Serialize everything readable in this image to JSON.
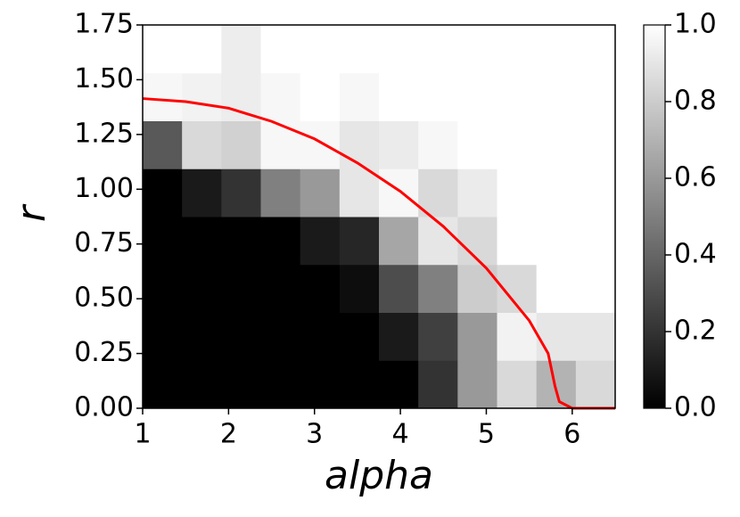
{
  "chart_data": {
    "type": "heatmap",
    "xlabel": "alpha",
    "ylabel": "r",
    "xlim": [
      1,
      6.5
    ],
    "ylim": [
      0,
      1.75
    ],
    "xticks": [
      1,
      2,
      3,
      4,
      5,
      6
    ],
    "yticks": [
      {
        "value": 0,
        "label": "0.00"
      },
      {
        "value": 0.25,
        "label": "0.25"
      },
      {
        "value": 0.5,
        "label": "0.50"
      },
      {
        "value": 0.75,
        "label": "0.75"
      },
      {
        "value": 1,
        "label": "1.00"
      },
      {
        "value": 1.25,
        "label": "1.25"
      },
      {
        "value": 1.5,
        "label": "1.50"
      },
      1.75
    ],
    "values": [
      [
        0,
        0,
        0,
        0,
        0,
        0,
        0,
        0.2,
        0.6,
        0.85,
        0.7,
        0.85
      ],
      [
        0,
        0,
        0,
        0,
        0,
        0,
        0.1,
        0.25,
        0.6,
        0.95,
        0.9,
        0.9
      ],
      [
        0,
        0,
        0,
        0,
        0,
        0.05,
        0.3,
        0.5,
        0.8,
        0.85,
        1,
        1
      ],
      [
        0,
        0,
        0,
        0,
        0.1,
        0.15,
        0.65,
        0.9,
        0.85,
        1,
        1,
        1
      ],
      [
        0,
        0.1,
        0.2,
        0.5,
        0.6,
        0.9,
        0.97,
        0.85,
        0.92,
        1,
        1,
        1
      ],
      [
        0.35,
        0.85,
        0.82,
        0.97,
        0.97,
        0.9,
        0.92,
        0.97,
        1,
        1,
        1,
        1
      ],
      [
        0.97,
        0.95,
        0.93,
        0.97,
        1,
        0.97,
        1,
        1,
        1,
        1,
        1,
        1
      ],
      [
        1,
        1,
        0.93,
        1,
        1,
        1,
        1,
        1,
        1,
        1,
        1,
        1
      ]
    ],
    "colorbar": {
      "lim": [
        0,
        1
      ],
      "ticks": [
        {
          "value": 0,
          "label": "0.0"
        },
        0.2,
        0.4,
        0.6,
        0.8,
        {
          "value": 1,
          "label": "1.0"
        }
      ]
    },
    "line": {
      "color": "#ff0000",
      "x": [
        1,
        1.5,
        2,
        2.5,
        3,
        3.5,
        4,
        4.5,
        5,
        5.5,
        5.72,
        5.8,
        5.85,
        6,
        6.5
      ],
      "y": [
        1.414,
        1.4,
        1.37,
        1.31,
        1.23,
        1.12,
        0.99,
        0.83,
        0.64,
        0.4,
        0.25,
        0.1,
        0.03,
        0,
        0
      ]
    }
  }
}
